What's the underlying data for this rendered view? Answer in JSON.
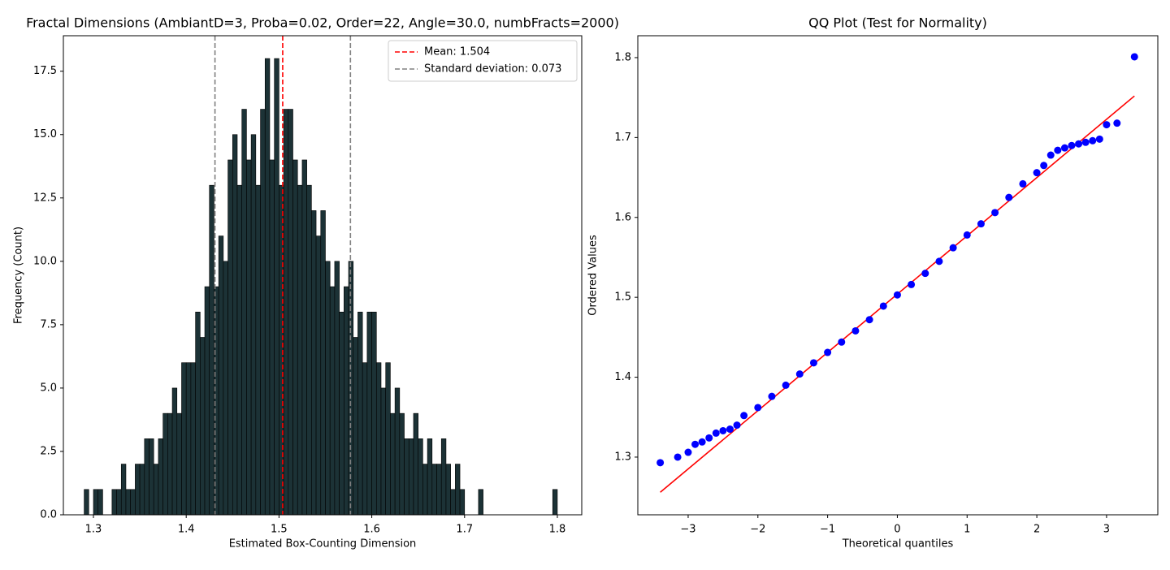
{
  "chart_data": [
    {
      "type": "histogram",
      "title": "Fractal Dimensions (AmbiantD=3, Proba=0.02, Order=22, Angle=30.0, numbFracts=2000)",
      "x_label": "Estimated Box-Counting Dimension",
      "y_label": "Frequency (Count)",
      "bins": [
        1.29,
        1.295,
        1.3,
        1.305,
        1.31,
        1.315,
        1.32,
        1.325,
        1.33,
        1.335,
        1.34,
        1.345,
        1.35,
        1.355,
        1.36,
        1.365,
        1.37,
        1.375,
        1.38,
        1.385,
        1.39,
        1.395,
        1.4,
        1.405,
        1.41,
        1.415,
        1.42,
        1.425,
        1.43,
        1.435,
        1.44,
        1.445,
        1.45,
        1.455,
        1.46,
        1.465,
        1.47,
        1.475,
        1.48,
        1.485,
        1.49,
        1.495,
        1.5,
        1.505,
        1.51,
        1.515,
        1.52,
        1.525,
        1.53,
        1.535,
        1.54,
        1.545,
        1.55,
        1.555,
        1.56,
        1.565,
        1.57,
        1.575,
        1.58,
        1.585,
        1.59,
        1.595,
        1.6,
        1.605,
        1.61,
        1.615,
        1.62,
        1.625,
        1.63,
        1.635,
        1.64,
        1.645,
        1.65,
        1.655,
        1.66,
        1.665,
        1.67,
        1.675,
        1.68,
        1.685,
        1.69,
        1.695,
        1.7,
        1.705,
        1.71,
        1.715,
        1.72,
        1.725,
        1.73,
        1.735,
        1.74,
        1.745,
        1.75,
        1.755,
        1.76,
        1.765,
        1.77,
        1.775,
        1.78,
        1.785,
        1.79,
        1.795,
        1.8
      ],
      "values": [
        1,
        0,
        1,
        1,
        0,
        0,
        1,
        1,
        2,
        1,
        1,
        2,
        2,
        3,
        3,
        2,
        3,
        4,
        4,
        5,
        4,
        6,
        6,
        6,
        8,
        7,
        9,
        13,
        9,
        11,
        10,
        14,
        15,
        13,
        16,
        14,
        15,
        13,
        16,
        18,
        14,
        18,
        13,
        16,
        16,
        14,
        13,
        14,
        13,
        12,
        11,
        12,
        10,
        9,
        10,
        8,
        9,
        10,
        7,
        8,
        6,
        8,
        8,
        6,
        5,
        6,
        4,
        5,
        4,
        3,
        3,
        4,
        3,
        2,
        3,
        2,
        2,
        3,
        2,
        1,
        2,
        1,
        0,
        0,
        0,
        1,
        0,
        0,
        0,
        0,
        0,
        0,
        0,
        0,
        0,
        0,
        0,
        0,
        0,
        0,
        0,
        1
      ],
      "color": "#1c3236",
      "vlines": [
        {
          "x": 1.504,
          "color": "#ff0000",
          "label": "Mean: 1.504"
        },
        {
          "x": 1.431,
          "color": "#808080",
          "label": "Standard deviation: 0.073"
        },
        {
          "x": 1.577,
          "color": "#808080"
        }
      ],
      "legend": "upper right",
      "xlim": [
        1.2676,
        1.8263
      ],
      "xticks": [
        1.3,
        1.4,
        1.5,
        1.6,
        1.7,
        1.8
      ],
      "ylim": [
        0,
        18.9
      ],
      "yticks": [
        {
          "value": 0,
          "label": "0.0"
        },
        2.5,
        {
          "value": 5,
          "label": "5.0"
        },
        7.5,
        {
          "value": 10,
          "label": "10.0"
        },
        12.5,
        {
          "value": 15,
          "label": "15.0"
        },
        17.5
      ]
    },
    {
      "type": "qq",
      "title": "QQ Plot (Test for Normality)",
      "x_label": "Theoretical quantiles",
      "y_label": "Ordered Values",
      "points": {
        "color": "#0000ff",
        "x": [
          -3.4,
          -3.15,
          -3.0,
          -2.9,
          -2.8,
          -2.7,
          -2.6,
          -2.5,
          -2.4,
          -2.3,
          -2.2,
          -2.0,
          -1.8,
          -1.6,
          -1.4,
          -1.2,
          -1.0,
          -0.8,
          -0.6,
          -0.4,
          -0.2,
          0,
          0.2,
          0.4,
          0.6,
          0.8,
          1.0,
          1.2,
          1.4,
          1.6,
          1.8,
          2.0,
          2.1,
          2.2,
          2.3,
          2.4,
          2.5,
          2.6,
          2.7,
          2.8,
          2.9,
          3.0,
          3.15,
          3.4
        ],
        "y": [
          1.293,
          1.3,
          1.306,
          1.316,
          1.319,
          1.324,
          1.33,
          1.333,
          1.335,
          1.34,
          1.352,
          1.362,
          1.376,
          1.39,
          1.404,
          1.418,
          1.431,
          1.444,
          1.458,
          1.472,
          1.489,
          1.503,
          1.516,
          1.53,
          1.545,
          1.562,
          1.578,
          1.592,
          1.606,
          1.625,
          1.642,
          1.656,
          1.665,
          1.678,
          1.684,
          1.687,
          1.69,
          1.692,
          1.694,
          1.696,
          1.698,
          1.716,
          1.718,
          1.801
        ]
      },
      "fit_line": {
        "color": "#ff0000",
        "x": [
          -3.4,
          3.4
        ],
        "y": [
          1.256,
          1.752
        ]
      },
      "xlim": [
        -3.722,
        3.735
      ],
      "xticks": [
        {
          "value": -3,
          "label": "−3"
        },
        {
          "value": -2,
          "label": "−2"
        },
        {
          "value": -1,
          "label": "−1"
        },
        0,
        1,
        2,
        3
      ],
      "ylim": [
        1.2278,
        1.8274
      ],
      "yticks": [
        1.3,
        1.4,
        1.5,
        1.6,
        1.7,
        1.8
      ]
    }
  ]
}
